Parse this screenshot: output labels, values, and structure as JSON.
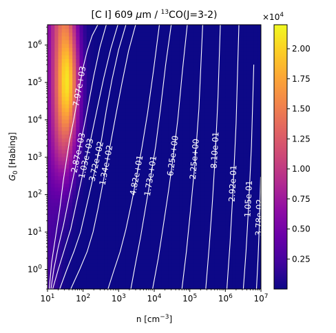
{
  "chart_data": {
    "type": "heatmap",
    "title": "[C I] 609 μm / 13CO(J=3-2)",
    "title_parts": {
      "main": "[C I] 609 ",
      "mu": "μ",
      "unit": "m / ",
      "iso": "13",
      "mol": "CO(J=3-2)"
    },
    "xlabel": {
      "main": "n [cm",
      "sup": "−3",
      "end": "]"
    },
    "ylabel": {
      "g": "G",
      "sub": "0",
      "rest": " [Habing]"
    },
    "x_scale": "log",
    "y_scale": "log",
    "xlim": [
      10,
      10000000
    ],
    "ylim": [
      0.3,
      3500000
    ],
    "x_ticks": [
      {
        "exp": 1,
        "base": "10",
        "sup": "1"
      },
      {
        "exp": 2,
        "base": "10",
        "sup": "2"
      },
      {
        "exp": 3,
        "base": "10",
        "sup": "3"
      },
      {
        "exp": 4,
        "base": "10",
        "sup": "4"
      },
      {
        "exp": 5,
        "base": "10",
        "sup": "5"
      },
      {
        "exp": 6,
        "base": "10",
        "sup": "6"
      },
      {
        "exp": 7,
        "base": "10",
        "sup": "7"
      }
    ],
    "y_ticks": [
      {
        "exp": 0,
        "base": "10",
        "sup": "0"
      },
      {
        "exp": 1,
        "base": "10",
        "sup": "1"
      },
      {
        "exp": 2,
        "base": "10",
        "sup": "2"
      },
      {
        "exp": 3,
        "base": "10",
        "sup": "3"
      },
      {
        "exp": 4,
        "base": "10",
        "sup": "4"
      },
      {
        "exp": 5,
        "base": "10",
        "sup": "5"
      },
      {
        "exp": 6,
        "base": "10",
        "sup": "6"
      }
    ],
    "colorbar": {
      "colormap": "plasma",
      "min": 0,
      "max": 22000,
      "multiplier": {
        "base": "×10",
        "sup": "4"
      },
      "ticks": [
        {
          "value": 2500,
          "label": "0.25"
        },
        {
          "value": 5000,
          "label": "0.50"
        },
        {
          "value": 7500,
          "label": "0.75"
        },
        {
          "value": 10000,
          "label": "1.00"
        },
        {
          "value": 12500,
          "label": "1.25"
        },
        {
          "value": 15000,
          "label": "1.50"
        },
        {
          "value": 17500,
          "label": "1.75"
        },
        {
          "value": 20000,
          "label": "2.00"
        }
      ]
    },
    "contour_color": "#ffffff",
    "contours": [
      {
        "label": "7.97e+03",
        "x": [
          11.2,
          13,
          17,
          22,
          28,
          35,
          42,
          52,
          65,
          80,
          100,
          130,
          180,
          260,
          400,
          600,
          1000,
          2000,
          4000
        ],
        "y": [
          0.3,
          1.5,
          8,
          40,
          250,
          1000,
          3000,
          8000,
          25000,
          80000,
          250000,
          700000,
          1800000,
          3500000,
          3500000,
          3500000,
          3500000,
          3500000,
          3500000
        ]
      },
      {
        "label": "2.87e+03",
        "x": [
          12.5,
          15,
          20,
          28,
          40,
          55,
          75,
          100,
          140,
          200,
          300,
          450
        ],
        "y": [
          0.3,
          1,
          4,
          15,
          80,
          350,
          1300,
          5000,
          25000,
          150000,
          900000,
          3500000
        ]
      },
      {
        "label": "1.03e+03",
        "x": [
          14,
          20,
          30,
          45,
          65,
          90,
          120,
          170,
          250,
          380,
          600,
          950
        ],
        "y": [
          0.3,
          1,
          3.5,
          12,
          60,
          250,
          900,
          3500,
          20000,
          130000,
          800000,
          3500000
        ]
      },
      {
        "label": "3.72e+02",
        "x": [
          22,
          35,
          55,
          85,
          125,
          175,
          240,
          330,
          450,
          650,
          1000,
          1600
        ],
        "y": [
          0.3,
          1,
          3,
          10,
          50,
          200,
          700,
          3000,
          18000,
          120000,
          750000,
          3500000
        ]
      },
      {
        "label": "1.34e+02",
        "x": [
          45,
          80,
          130,
          190,
          260,
          340,
          450,
          600,
          850,
          1250,
          1900,
          3000
        ],
        "y": [
          0.3,
          1,
          3,
          10,
          40,
          150,
          600,
          2500,
          15000,
          100000,
          700000,
          3500000
        ]
      },
      {
        "label": "4.82e+01",
        "x": [
          500,
          750,
          1100,
          1600,
          2300,
          3200,
          4500,
          6500,
          9500,
          14000
        ],
        "y": [
          0.3,
          1,
          3,
          12,
          60,
          300,
          1800,
          15000,
          200000,
          3500000
        ]
      },
      {
        "label": "1.73e+01",
        "x": [
          2200,
          3000,
          4200,
          5800,
          8000,
          11000,
          15000,
          21000,
          30000
        ],
        "y": [
          0.3,
          1.5,
          8,
          50,
          300,
          2000,
          20000,
          300000,
          3500000
        ]
      },
      {
        "label": "6.25e+00",
        "x": [
          9000,
          13000,
          18000,
          25000,
          34000,
          46000,
          62000,
          85000
        ],
        "y": [
          0.3,
          2,
          15,
          120,
          1000,
          10000,
          200000,
          3500000
        ]
      },
      {
        "label": "2.25e+00",
        "x": [
          60000,
          80000,
          105000,
          140000,
          180000,
          230000
        ],
        "y": [
          0.3,
          3,
          40,
          700,
          20000,
          3500000
        ]
      },
      {
        "label": "8.10e-01",
        "x": [
          280000,
          350000,
          430000,
          520000,
          620000,
          720000
        ],
        "y": [
          0.3,
          4,
          60,
          1200,
          40000,
          3500000
        ]
      },
      {
        "label": "2.92e-01",
        "x": [
          1100000,
          1350000,
          1650000,
          2000000,
          2400000
        ],
        "y": [
          0.3,
          5,
          150,
          8000,
          3500000
        ]
      },
      {
        "label": "1.05e-01",
        "x": [
          3200000,
          3800000,
          4500000,
          5400000,
          6300000
        ],
        "y": [
          0.3,
          3,
          50,
          2000,
          300000
        ]
      },
      {
        "label": "3.78e-02",
        "x": [
          7500000,
          8300000,
          9100000,
          9800000
        ],
        "y": [
          0.3,
          2,
          20,
          300
        ]
      }
    ]
  }
}
